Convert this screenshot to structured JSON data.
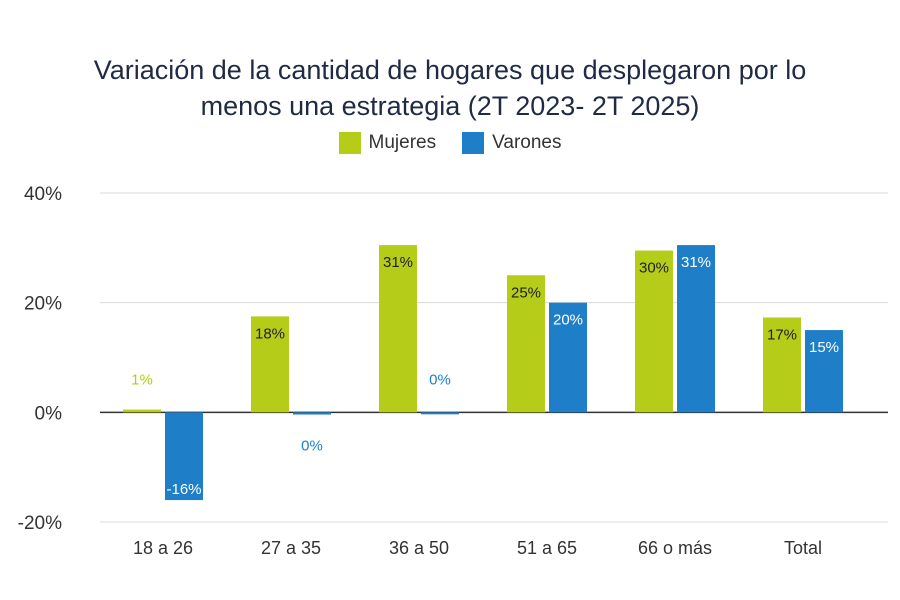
{
  "chart_data": {
    "type": "bar",
    "title_line1": "Variación de la cantidad de hogares que desplegaron por lo",
    "title_line2": "menos una estrategia (2T 2023- 2T 2025)",
    "xlabel": "",
    "ylabel": "",
    "categories": [
      "18 a  26",
      "27 a 35",
      "36 a 50",
      "51 a 65",
      "66 o más",
      "Total"
    ],
    "series": [
      {
        "name": "Mujeres",
        "color": "#b5cc18",
        "values": [
          0.5,
          17.5,
          30.5,
          25,
          29.5,
          17.3
        ],
        "labels": [
          "1%",
          "18%",
          "31%",
          "25%",
          "30%",
          "17%"
        ]
      },
      {
        "name": "Varones",
        "color": "#1f7ec8",
        "values": [
          -16,
          -0.4,
          0,
          20,
          30.5,
          15
        ],
        "labels": [
          "-16%",
          "0%",
          "0%",
          "20%",
          "31%",
          "15%"
        ]
      }
    ],
    "ylim": [
      -20,
      40
    ],
    "yticks": [
      "-20%",
      "0%",
      "20%",
      "40%"
    ],
    "ytick_values": [
      -20,
      0,
      20,
      40
    ],
    "grid": true,
    "legend_position": "top-center"
  }
}
